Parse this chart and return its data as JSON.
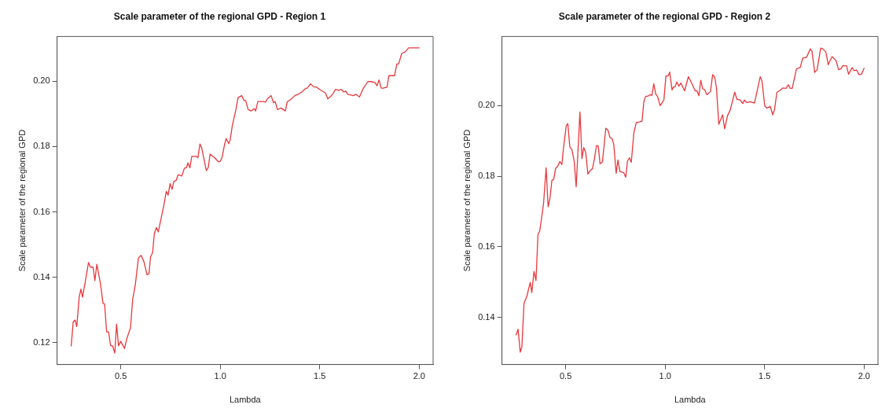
{
  "chart_data": [
    {
      "type": "line",
      "title": "Scale parameter of the regional GPD - Region 1",
      "xlabel": "Lambda",
      "ylabel": "Scale parameter of the regional GPD",
      "marker": "none",
      "legend": false,
      "xlim": [
        0.18,
        2.07
      ],
      "xticks": [
        {
          "value": 0.5,
          "label": "0.5"
        },
        {
          "value": 1,
          "label": "1.0"
        },
        {
          "value": 1.5,
          "label": "1.5"
        },
        {
          "value": 2,
          "label": "2.0"
        }
      ],
      "ylim": [
        0.1133,
        0.2137
      ],
      "yticks": [
        0.12,
        0.14,
        0.16,
        0.18,
        {
          "value": 0.2,
          "label": "0.20"
        }
      ],
      "series": [
        {
          "color": "#e8383d",
          "x": [
            0.251,
            0.261,
            0.271,
            0.279,
            0.291,
            0.3,
            0.308,
            0.32,
            0.338,
            0.348,
            0.361,
            0.37,
            0.38,
            0.398,
            0.411,
            0.419,
            0.429,
            0.439,
            0.449,
            0.459,
            0.47,
            0.479,
            0.489,
            0.5,
            0.519,
            0.531,
            0.549,
            0.56,
            0.573,
            0.589,
            0.602,
            0.617,
            0.632,
            0.642,
            0.65,
            0.66,
            0.669,
            0.679,
            0.689,
            0.698,
            0.717,
            0.729,
            0.738,
            0.748,
            0.758,
            0.767,
            0.779,
            0.788,
            0.807,
            0.82,
            0.83,
            0.838,
            0.848,
            0.857,
            0.88,
            0.888,
            0.898,
            0.907,
            0.93,
            0.94,
            0.949,
            0.971,
            0.99,
            0.999,
            1.009,
            1.021,
            1.03,
            1.043,
            1.05,
            1.061,
            1.078,
            1.09,
            1.108,
            1.12,
            1.128,
            1.14,
            1.155,
            1.17,
            1.178,
            1.189,
            1.218,
            1.228,
            1.237,
            1.256,
            1.268,
            1.276,
            1.288,
            1.306,
            1.327,
            1.337,
            1.356,
            1.375,
            1.394,
            1.412,
            1.429,
            1.437,
            1.454,
            1.469,
            1.484,
            1.5,
            1.512,
            1.529,
            1.541,
            1.554,
            1.567,
            1.579,
            1.596,
            1.609,
            1.621,
            1.631,
            1.641,
            1.656,
            1.669,
            1.682,
            1.7,
            1.719,
            1.742,
            1.757,
            1.778,
            1.788,
            1.798,
            1.809,
            1.819,
            1.838,
            1.848,
            1.876,
            1.888,
            1.897,
            1.912,
            1.93,
            1.947,
            2.0
          ],
          "values": [
            0.119,
            0.1263,
            0.1269,
            0.1249,
            0.1339,
            0.1364,
            0.1339,
            0.138,
            0.1445,
            0.1431,
            0.1431,
            0.139,
            0.144,
            0.1381,
            0.132,
            0.1318,
            0.1233,
            0.1233,
            0.1191,
            0.119,
            0.1168,
            0.1257,
            0.119,
            0.1204,
            0.1182,
            0.1213,
            0.1245,
            0.1332,
            0.1376,
            0.1459,
            0.1467,
            0.1447,
            0.1408,
            0.1411,
            0.1463,
            0.1475,
            0.1534,
            0.1552,
            0.1539,
            0.1566,
            0.1621,
            0.1663,
            0.1651,
            0.1687,
            0.1669,
            0.1693,
            0.1697,
            0.1714,
            0.171,
            0.1734,
            0.1735,
            0.175,
            0.1735,
            0.177,
            0.177,
            0.1766,
            0.1808,
            0.1796,
            0.1727,
            0.1736,
            0.1777,
            0.1766,
            0.1754,
            0.1754,
            0.1766,
            0.1804,
            0.1825,
            0.1809,
            0.182,
            0.1865,
            0.1911,
            0.195,
            0.1956,
            0.1941,
            0.1941,
            0.1914,
            0.1909,
            0.1916,
            0.1909,
            0.1938,
            0.1938,
            0.1936,
            0.1946,
            0.1956,
            0.1934,
            0.1938,
            0.1913,
            0.1918,
            0.1909,
            0.1937,
            0.1945,
            0.1956,
            0.1961,
            0.1968,
            0.1978,
            0.1979,
            0.1992,
            0.1983,
            0.1982,
            0.1975,
            0.197,
            0.1964,
            0.1946,
            0.1953,
            0.1962,
            0.1975,
            0.1972,
            0.1975,
            0.1967,
            0.197,
            0.196,
            0.1958,
            0.1956,
            0.196,
            0.1952,
            0.1978,
            0.1999,
            0.1999,
            0.1996,
            0.1986,
            0.2004,
            0.1979,
            0.1979,
            0.1982,
            0.2017,
            0.2017,
            0.2053,
            0.2053,
            0.2085,
            0.209,
            0.2102,
            0.2102
          ]
        }
      ]
    },
    {
      "type": "line",
      "title": "Scale parameter of the regional GPD - Region 2",
      "xlabel": "Lambda",
      "ylabel": "Scale parameter of the regional GPD",
      "marker": "none",
      "legend": false,
      "xlim": [
        0.18,
        2.07
      ],
      "xticks": [
        {
          "value": 0.5,
          "label": "0.5"
        },
        {
          "value": 1,
          "label": "1.0"
        },
        {
          "value": 1.5,
          "label": "1.5"
        },
        {
          "value": 2,
          "label": "2.0"
        }
      ],
      "ylim": [
        0.1266,
        0.2196
      ],
      "yticks": [
        0.14,
        0.16,
        0.18,
        {
          "value": 0.2,
          "label": "0.20"
        }
      ],
      "series": [
        {
          "color": "#e8383d",
          "x": [
            0.251,
            0.261,
            0.272,
            0.28,
            0.291,
            0.305,
            0.311,
            0.322,
            0.33,
            0.341,
            0.351,
            0.361,
            0.37,
            0.389,
            0.402,
            0.412,
            0.421,
            0.431,
            0.44,
            0.45,
            0.458,
            0.471,
            0.481,
            0.49,
            0.503,
            0.511,
            0.521,
            0.531,
            0.543,
            0.553,
            0.572,
            0.582,
            0.591,
            0.601,
            0.612,
            0.625,
            0.635,
            0.645,
            0.655,
            0.664,
            0.673,
            0.685,
            0.702,
            0.713,
            0.723,
            0.733,
            0.742,
            0.754,
            0.763,
            0.773,
            0.792,
            0.802,
            0.811,
            0.821,
            0.83,
            0.843,
            0.855,
            0.874,
            0.884,
            0.893,
            0.902,
            0.914,
            0.924,
            0.934,
            0.943,
            0.953,
            0.962,
            0.975,
            0.994,
            1.004,
            1.015,
            1.023,
            1.035,
            1.042,
            1.05,
            1.059,
            1.069,
            1.079,
            1.098,
            1.117,
            1.135,
            1.151,
            1.16,
            1.17,
            1.179,
            1.189,
            1.199,
            1.21,
            1.228,
            1.239,
            1.249,
            1.258,
            1.27,
            1.289,
            1.299,
            1.314,
            1.327,
            1.35,
            1.361,
            1.377,
            1.39,
            1.399,
            1.409,
            1.428,
            1.449,
            1.462,
            1.478,
            1.487,
            1.501,
            1.512,
            1.528,
            1.541,
            1.55,
            1.562,
            1.575,
            1.591,
            1.608,
            1.619,
            1.629,
            1.639,
            1.66,
            1.679,
            1.692,
            1.711,
            1.73,
            1.738,
            1.752,
            1.764,
            1.782,
            1.792,
            1.808,
            1.82,
            1.839,
            1.859,
            1.872,
            1.884,
            1.893,
            1.912,
            1.922,
            1.94,
            1.95,
            1.962,
            1.975,
            1.987,
            2.0
          ],
          "values": [
            0.135,
            0.1366,
            0.1301,
            0.1316,
            0.144,
            0.1459,
            0.1473,
            0.1499,
            0.147,
            0.153,
            0.1504,
            0.1634,
            0.1645,
            0.1722,
            0.1824,
            0.1713,
            0.1737,
            0.1788,
            0.1791,
            0.1823,
            0.1826,
            0.1841,
            0.1833,
            0.1883,
            0.1943,
            0.1949,
            0.1883,
            0.1876,
            0.1843,
            0.177,
            0.1982,
            0.185,
            0.1881,
            0.1867,
            0.1806,
            0.1817,
            0.1821,
            0.185,
            0.1887,
            0.1885,
            0.1835,
            0.184,
            0.1936,
            0.193,
            0.1909,
            0.1907,
            0.189,
            0.1808,
            0.1846,
            0.1813,
            0.181,
            0.1797,
            0.1843,
            0.1852,
            0.1839,
            0.1923,
            0.1952,
            0.1954,
            0.1956,
            0.2011,
            0.2026,
            0.2027,
            0.2031,
            0.2029,
            0.2062,
            0.2033,
            0.2026,
            0.2,
            0.2016,
            0.2084,
            0.2084,
            0.2095,
            0.2044,
            0.2053,
            0.2053,
            0.2067,
            0.2055,
            0.2064,
            0.2042,
            0.2082,
            0.2062,
            0.2042,
            0.2042,
            0.2028,
            0.2072,
            0.2048,
            0.2045,
            0.2031,
            0.204,
            0.2088,
            0.2081,
            0.2051,
            0.1947,
            0.1974,
            0.1934,
            0.1972,
            0.1987,
            0.2038,
            0.2018,
            0.2016,
            0.2006,
            0.2016,
            0.2009,
            0.2011,
            0.2007,
            0.204,
            0.2082,
            0.207,
            0.1999,
            0.1993,
            0.1998,
            0.1974,
            0.1989,
            0.2038,
            0.2042,
            0.205,
            0.2049,
            0.2059,
            0.2049,
            0.2049,
            0.2104,
            0.2108,
            0.2135,
            0.2137,
            0.2161,
            0.2155,
            0.2094,
            0.2102,
            0.2163,
            0.2161,
            0.2152,
            0.2116,
            0.2139,
            0.2128,
            0.2102,
            0.2104,
            0.2113,
            0.2113,
            0.2089,
            0.2108,
            0.2099,
            0.2101,
            0.2088,
            0.2089,
            0.2106
          ]
        }
      ]
    }
  ]
}
